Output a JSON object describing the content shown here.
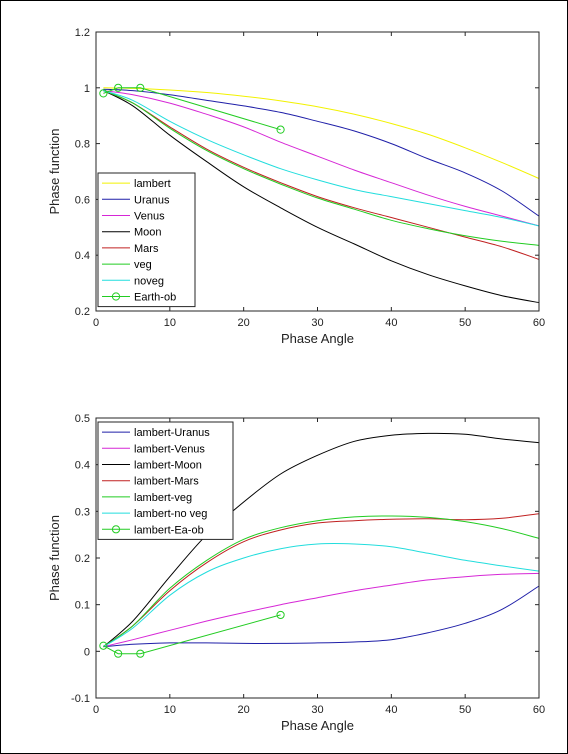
{
  "chart_data": [
    {
      "type": "line",
      "xlabel": "Phase Angle",
      "ylabel": "Phase function",
      "xlim": [
        0,
        60
      ],
      "ylim": [
        0.2,
        1.2
      ],
      "xticks": [
        "0",
        "10",
        "20",
        "30",
        "40",
        "50",
        "60"
      ],
      "yticks": [
        "0.2",
        "0.4",
        "0.6",
        "0.8",
        "1",
        "1.2"
      ],
      "legend_position": "bottom-left",
      "x": [
        1,
        5,
        10,
        15,
        20,
        25,
        30,
        35,
        40,
        45,
        50,
        55,
        60
      ],
      "series": [
        {
          "name": "lambert",
          "color": "#f2f200",
          "values": [
            1.0,
            0.998,
            0.992,
            0.983,
            0.97,
            0.953,
            0.932,
            0.905,
            0.872,
            0.833,
            0.785,
            0.732,
            0.675
          ]
        },
        {
          "name": "Uranus",
          "color": "#1f1fa8",
          "values": [
            0.995,
            0.99,
            0.975,
            0.955,
            0.935,
            0.912,
            0.88,
            0.845,
            0.8,
            0.745,
            0.695,
            0.63,
            0.54
          ]
        },
        {
          "name": "Venus",
          "color": "#d627d6",
          "values": [
            0.99,
            0.975,
            0.945,
            0.905,
            0.86,
            0.805,
            0.755,
            0.705,
            0.66,
            0.615,
            0.575,
            0.54,
            0.505
          ]
        },
        {
          "name": "Moon",
          "color": "#000000",
          "values": [
            0.99,
            0.935,
            0.83,
            0.735,
            0.645,
            0.57,
            0.5,
            0.44,
            0.38,
            0.33,
            0.29,
            0.255,
            0.23
          ]
        },
        {
          "name": "Mars",
          "color": "#c02020",
          "values": [
            0.99,
            0.945,
            0.86,
            0.78,
            0.715,
            0.66,
            0.61,
            0.57,
            0.535,
            0.5,
            0.465,
            0.43,
            0.385
          ]
        },
        {
          "name": "veg",
          "color": "#22cc22",
          "values": [
            0.99,
            0.945,
            0.855,
            0.775,
            0.71,
            0.655,
            0.605,
            0.565,
            0.525,
            0.495,
            0.47,
            0.45,
            0.435
          ]
        },
        {
          "name": "noveg",
          "color": "#22dddd",
          "values": [
            0.99,
            0.955,
            0.88,
            0.815,
            0.76,
            0.71,
            0.67,
            0.635,
            0.61,
            0.585,
            0.56,
            0.535,
            0.505
          ]
        }
      ],
      "markers": {
        "name": "Earth-ob",
        "color": "#22cc22",
        "x": [
          1,
          3,
          6,
          25
        ],
        "y": [
          0.98,
          1.0,
          1.0,
          0.85
        ]
      }
    },
    {
      "type": "line",
      "xlabel": "Phase Angle",
      "ylabel": "Phase function",
      "xlim": [
        0,
        60
      ],
      "ylim": [
        -0.1,
        0.5
      ],
      "xticks": [
        "0",
        "10",
        "20",
        "30",
        "40",
        "50",
        "60"
      ],
      "yticks": [
        "-0.1",
        "0",
        "0.1",
        "0.2",
        "0.3",
        "0.4",
        "0.5"
      ],
      "legend_position": "top-left",
      "x": [
        1,
        5,
        10,
        15,
        20,
        25,
        30,
        35,
        40,
        45,
        50,
        55,
        60
      ],
      "series": [
        {
          "name": "lambert-Uranus",
          "color": "#1f1fa8",
          "values": [
            0.01,
            0.015,
            0.018,
            0.018,
            0.017,
            0.017,
            0.018,
            0.02,
            0.025,
            0.04,
            0.06,
            0.09,
            0.14
          ]
        },
        {
          "name": "lambert-Venus",
          "color": "#d627d6",
          "values": [
            0.01,
            0.025,
            0.045,
            0.065,
            0.083,
            0.1,
            0.115,
            0.13,
            0.142,
            0.153,
            0.16,
            0.165,
            0.167
          ]
        },
        {
          "name": "lambert-Moon",
          "color": "#000000",
          "values": [
            0.01,
            0.065,
            0.16,
            0.25,
            0.32,
            0.38,
            0.42,
            0.45,
            0.463,
            0.467,
            0.465,
            0.455,
            0.447
          ]
        },
        {
          "name": "lambert-Mars",
          "color": "#c02020",
          "values": [
            0.01,
            0.055,
            0.13,
            0.19,
            0.235,
            0.26,
            0.275,
            0.28,
            0.283,
            0.284,
            0.282,
            0.285,
            0.295
          ]
        },
        {
          "name": "lambert-veg",
          "color": "#22cc22",
          "values": [
            0.01,
            0.055,
            0.135,
            0.195,
            0.24,
            0.265,
            0.28,
            0.288,
            0.29,
            0.287,
            0.278,
            0.263,
            0.242
          ]
        },
        {
          "name": "lambert-no veg",
          "color": "#22dddd",
          "values": [
            0.01,
            0.05,
            0.12,
            0.17,
            0.2,
            0.22,
            0.23,
            0.23,
            0.224,
            0.21,
            0.195,
            0.183,
            0.172
          ]
        }
      ],
      "markers": {
        "name": "lambert-Ea-ob",
        "color": "#22cc22",
        "x": [
          1,
          3,
          6,
          25
        ],
        "y": [
          0.012,
          -0.005,
          -0.005,
          0.078
        ]
      }
    }
  ]
}
